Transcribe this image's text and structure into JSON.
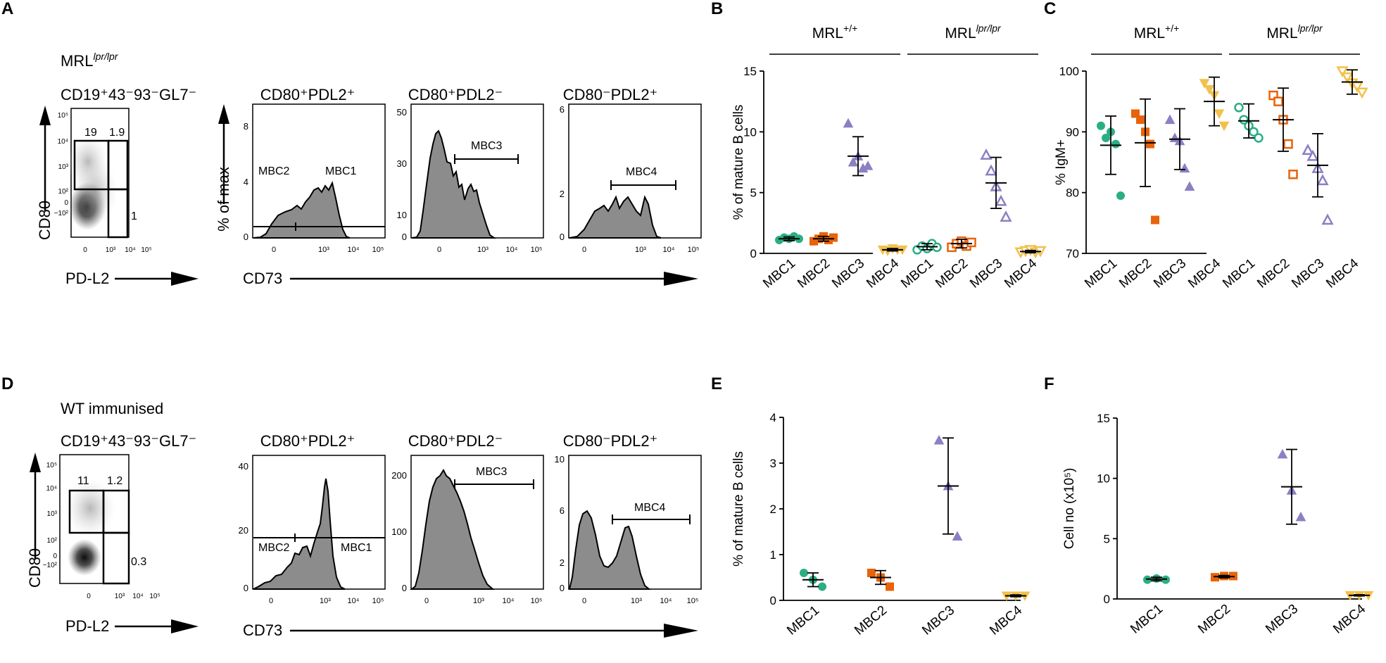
{
  "colors": {
    "MBC1": "#2bae85",
    "MBC2": "#e8630a",
    "MBC3": "#8d7fc4",
    "MBC4": "#f2c04c"
  },
  "panel_letters": {
    "A": "A",
    "B": "B",
    "C": "C",
    "D": "D",
    "E": "E",
    "F": "F"
  },
  "flow": {
    "A": {
      "strain_base": "MRL",
      "strain_sup": "lpr/lpr",
      "gate_title": "CD19⁺43⁻93⁻GL7⁻",
      "y_axis": "CD80",
      "x_axis": "PD-L2",
      "gates": [
        "19",
        "1.9",
        "1"
      ]
    },
    "D": {
      "strain": "WT immunised",
      "gate_title": "CD19⁺43⁻93⁻GL7⁻",
      "y_axis": "CD80",
      "x_axis": "PD-L2",
      "gates": [
        "11",
        "1.2",
        "0.3"
      ]
    },
    "dot_ticks_y": [
      "10⁵",
      "10⁴",
      "10³",
      "10²",
      "0",
      "−10²"
    ],
    "dot_ticks_x": [
      "0",
      "10³",
      "10⁴",
      "10⁵"
    ],
    "hist_titles": [
      "CD80⁺PDL2⁺",
      "CD80⁺PDL2⁻",
      "CD80⁻PDL2⁺"
    ],
    "hist_ylabel": "% of max",
    "hist_xaxis": "CD73",
    "hist_xticks": [
      "0",
      "10³",
      "10⁴",
      "10⁵"
    ],
    "gate_labels": {
      "mbc1": "MBC1",
      "mbc2": "MBC2",
      "mbc3": "MBC3",
      "mbc4": "MBC4"
    },
    "hist_yticks_A": [
      [
        "8",
        "4",
        "0"
      ],
      [
        "50",
        "30",
        "10",
        "0"
      ],
      [
        "6",
        "2",
        "0"
      ]
    ],
    "hist_yticks_D": [
      [
        "40",
        "20",
        "0"
      ],
      [
        "200",
        "100",
        "0"
      ],
      [
        "10",
        "6",
        "2",
        "0"
      ]
    ]
  },
  "chart_data": [
    {
      "panel": "B",
      "type": "scatter",
      "ylabel": "% of mature B cells",
      "ylim": [
        0,
        15
      ],
      "yticks": [
        "0",
        "5",
        "10",
        "15"
      ],
      "group_labels": [
        {
          "base": "MRL",
          "sup": "+/+"
        },
        {
          "base": "MRL",
          "sup": "lpr/lpr"
        }
      ],
      "categories": [
        "MBC1",
        "MBC2",
        "MBC3",
        "MBC4",
        "MBC1",
        "MBC2",
        "MBC3",
        "MBC4"
      ],
      "series": [
        {
          "name": "MBC1",
          "group": "MRL+/+",
          "values": [
            1.1,
            1.3,
            1.2,
            1.4,
            1.2
          ],
          "mean": 1.2,
          "sd": 0.15
        },
        {
          "name": "MBC2",
          "group": "MRL+/+",
          "values": [
            1.0,
            1.2,
            1.4,
            1.1,
            1.3
          ],
          "mean": 1.2,
          "sd": 0.2
        },
        {
          "name": "MBC3",
          "group": "MRL+/+",
          "values": [
            10.7,
            7.5,
            8.0,
            7.0,
            7.2
          ],
          "mean": 8.0,
          "sd": 1.6
        },
        {
          "name": "MBC4",
          "group": "MRL+/+",
          "values": [
            0.3,
            0.2,
            0.4,
            0.3,
            0.3
          ],
          "mean": 0.3,
          "sd": 0.1
        },
        {
          "name": "MBC1",
          "group": "MRLlpr/lpr",
          "values": [
            0.3,
            0.6,
            0.4,
            0.8,
            0.5
          ],
          "mean": 0.55,
          "sd": 0.25
        },
        {
          "name": "MBC2",
          "group": "MRLlpr/lpr",
          "values": [
            0.5,
            0.8,
            1.0,
            0.6,
            0.9
          ],
          "mean": 0.8,
          "sd": 0.35
        },
        {
          "name": "MBC3",
          "group": "MRLlpr/lpr",
          "values": [
            8.1,
            6.8,
            5.5,
            4.3,
            3.0
          ],
          "mean": 5.8,
          "sd": 2.1
        },
        {
          "name": "MBC4",
          "group": "MRLlpr/lpr",
          "values": [
            0.1,
            0.2,
            0.3,
            0.1,
            0.2
          ],
          "mean": 0.15,
          "sd": 0.1
        }
      ]
    },
    {
      "panel": "C",
      "type": "scatter",
      "ylabel": "% IgM+",
      "ylim": [
        70,
        100
      ],
      "yticks": [
        "70",
        "80",
        "90",
        "100"
      ],
      "group_labels": [
        {
          "base": "MRL",
          "sup": "+/+"
        },
        {
          "base": "MRL",
          "sup": "lpr/lpr"
        }
      ],
      "categories": [
        "MBC1",
        "MBC2",
        "MBC3",
        "MBC4",
        "MBC1",
        "MBC2",
        "MBC3",
        "MBC4"
      ],
      "series": [
        {
          "name": "MBC1",
          "group": "MRL+/+",
          "values": [
            91,
            89,
            90,
            88,
            79.5
          ],
          "mean": 87.8,
          "sd": 4.8
        },
        {
          "name": "MBC2",
          "group": "MRL+/+",
          "values": [
            93,
            92,
            90,
            88,
            75.5
          ],
          "mean": 88.2,
          "sd": 7.2
        },
        {
          "name": "MBC3",
          "group": "MRL+/+",
          "values": [
            92,
            89,
            88.5,
            84,
            81
          ],
          "mean": 88.8,
          "sd": 5.0
        },
        {
          "name": "MBC4",
          "group": "MRL+/+",
          "values": [
            98,
            97,
            96,
            93,
            91
          ],
          "mean": 95,
          "sd": 4.0
        },
        {
          "name": "MBC1",
          "group": "MRLlpr/lpr",
          "values": [
            94,
            92,
            91,
            90,
            89
          ],
          "mean": 91.8,
          "sd": 2.8
        },
        {
          "name": "MBC2",
          "group": "MRLlpr/lpr",
          "values": [
            96,
            95,
            92,
            88,
            83
          ],
          "mean": 92.0,
          "sd": 5.2
        },
        {
          "name": "MBC3",
          "group": "MRLlpr/lpr",
          "values": [
            87,
            86,
            84,
            82,
            75.5
          ],
          "mean": 84.5,
          "sd": 5.2
        },
        {
          "name": "MBC4",
          "group": "MRLlpr/lpr",
          "values": [
            100,
            99,
            98,
            97.5,
            96.5
          ],
          "mean": 98.2,
          "sd": 2.0
        }
      ]
    },
    {
      "panel": "E",
      "type": "scatter",
      "ylabel": "% of mature B cells",
      "ylim": [
        0,
        4
      ],
      "yticks": [
        "0",
        "1",
        "2",
        "3",
        "4"
      ],
      "categories": [
        "MBC1",
        "MBC2",
        "MBC3",
        "MBC4"
      ],
      "series": [
        {
          "name": "MBC1",
          "values": [
            0.6,
            0.45,
            0.3
          ],
          "mean": 0.45,
          "sd": 0.15
        },
        {
          "name": "MBC2",
          "values": [
            0.6,
            0.5,
            0.3
          ],
          "mean": 0.5,
          "sd": 0.15
        },
        {
          "name": "MBC3",
          "values": [
            3.5,
            2.5,
            1.4
          ],
          "mean": 2.5,
          "sd": 1.05
        },
        {
          "name": "MBC4",
          "values": [
            0.1,
            0.1,
            0.1
          ],
          "mean": 0.1,
          "sd": 0.02
        }
      ]
    },
    {
      "panel": "F",
      "type": "scatter",
      "ylabel": "Cell no (x10⁵)",
      "ylim": [
        0,
        15
      ],
      "yticks": [
        "0",
        "5",
        "10",
        "15"
      ],
      "categories": [
        "MBC1",
        "MBC2",
        "MBC3",
        "MBC4"
      ],
      "series": [
        {
          "name": "MBC1",
          "values": [
            1.6,
            1.7,
            1.6
          ],
          "mean": 1.65,
          "sd": 0.15
        },
        {
          "name": "MBC2",
          "values": [
            1.8,
            1.9,
            1.9
          ],
          "mean": 1.85,
          "sd": 0.1
        },
        {
          "name": "MBC3",
          "values": [
            12,
            9,
            6.8
          ],
          "mean": 9.3,
          "sd": 3.1
        },
        {
          "name": "MBC4",
          "values": [
            0.3,
            0.3,
            0.3
          ],
          "mean": 0.3,
          "sd": 0.05
        }
      ]
    }
  ]
}
